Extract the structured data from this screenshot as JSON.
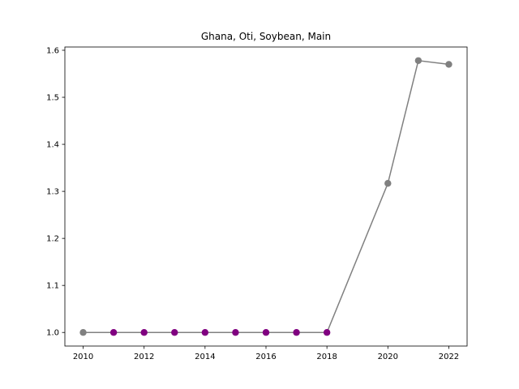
{
  "chart_data": {
    "type": "line",
    "title": "Ghana, Oti, Soybean, Main",
    "xlabel": "",
    "ylabel": "",
    "x": [
      2010,
      2011,
      2012,
      2013,
      2014,
      2015,
      2016,
      2017,
      2018,
      2020,
      2021,
      2022
    ],
    "series": [
      {
        "values": [
          1.0,
          1.0,
          1.0,
          1.0,
          1.0,
          1.0,
          1.0,
          1.0,
          1.0,
          1.317,
          1.578,
          1.57
        ],
        "marker_colors": [
          "#808080",
          "#800080",
          "#800080",
          "#800080",
          "#800080",
          "#800080",
          "#800080",
          "#800080",
          "#800080",
          "#808080",
          "#808080",
          "#808080"
        ],
        "line_color": "#808080"
      }
    ],
    "xlim": [
      2009.4,
      2022.6
    ],
    "ylim": [
      0.9711,
      1.6069
    ],
    "xticks": [
      "2010",
      "2012",
      "2014",
      "2016",
      "2018",
      "2020",
      "2022"
    ],
    "yticks": [
      "1.0",
      "1.1",
      "1.2",
      "1.3",
      "1.4",
      "1.5",
      "1.6"
    ],
    "grid": false,
    "legend": "none"
  }
}
